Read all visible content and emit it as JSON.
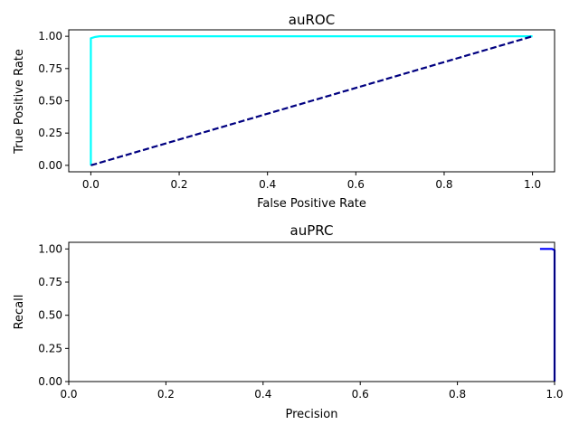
{
  "chart_data": [
    {
      "type": "line",
      "title": "auROC",
      "xlabel": "False Positive Rate",
      "ylabel": "True Positive Rate",
      "xlim": [
        -0.05,
        1.05
      ],
      "ylim": [
        -0.05,
        1.05
      ],
      "xticks": [
        0.0,
        0.2,
        0.4,
        0.6,
        0.8,
        1.0
      ],
      "xtick_labels": [
        "0.0",
        "0.2",
        "0.4",
        "0.6",
        "0.8",
        "1.0"
      ],
      "yticks": [
        0.0,
        0.25,
        0.5,
        0.75,
        1.0
      ],
      "ytick_labels": [
        "0.00",
        "0.25",
        "0.50",
        "0.75",
        "1.00"
      ],
      "grid": false,
      "legend": "none",
      "series": [
        {
          "color": "#00ffff",
          "style": "solid",
          "x": [
            0.0,
            0.0,
            0.0,
            0.01,
            0.02,
            1.0
          ],
          "y": [
            0.0,
            0.5,
            0.985,
            0.995,
            1.0,
            1.0
          ]
        },
        {
          "color": "#000080",
          "style": "dashed",
          "x": [
            0.0,
            1.0
          ],
          "y": [
            0.0,
            1.0
          ]
        }
      ]
    },
    {
      "type": "line",
      "title": "auPRC",
      "xlabel": "Precision",
      "ylabel": "Recall",
      "xlim": [
        0.0,
        1.0
      ],
      "ylim": [
        0.0,
        1.05
      ],
      "xticks": [
        0.0,
        0.2,
        0.4,
        0.6,
        0.8,
        1.0
      ],
      "xtick_labels": [
        "0.0",
        "0.2",
        "0.4",
        "0.6",
        "0.8",
        "1.0"
      ],
      "yticks": [
        0.0,
        0.25,
        0.5,
        0.75,
        1.0
      ],
      "ytick_labels": [
        "0.00",
        "0.25",
        "0.50",
        "0.75",
        "1.00"
      ],
      "grid": false,
      "legend": "none",
      "series": [
        {
          "color": "#0000ff",
          "style": "solid",
          "x": [
            0.97,
            0.995,
            0.998,
            1.0,
            1.0
          ],
          "y": [
            1.0,
            1.0,
            0.995,
            0.99,
            0.0
          ]
        }
      ]
    }
  ]
}
